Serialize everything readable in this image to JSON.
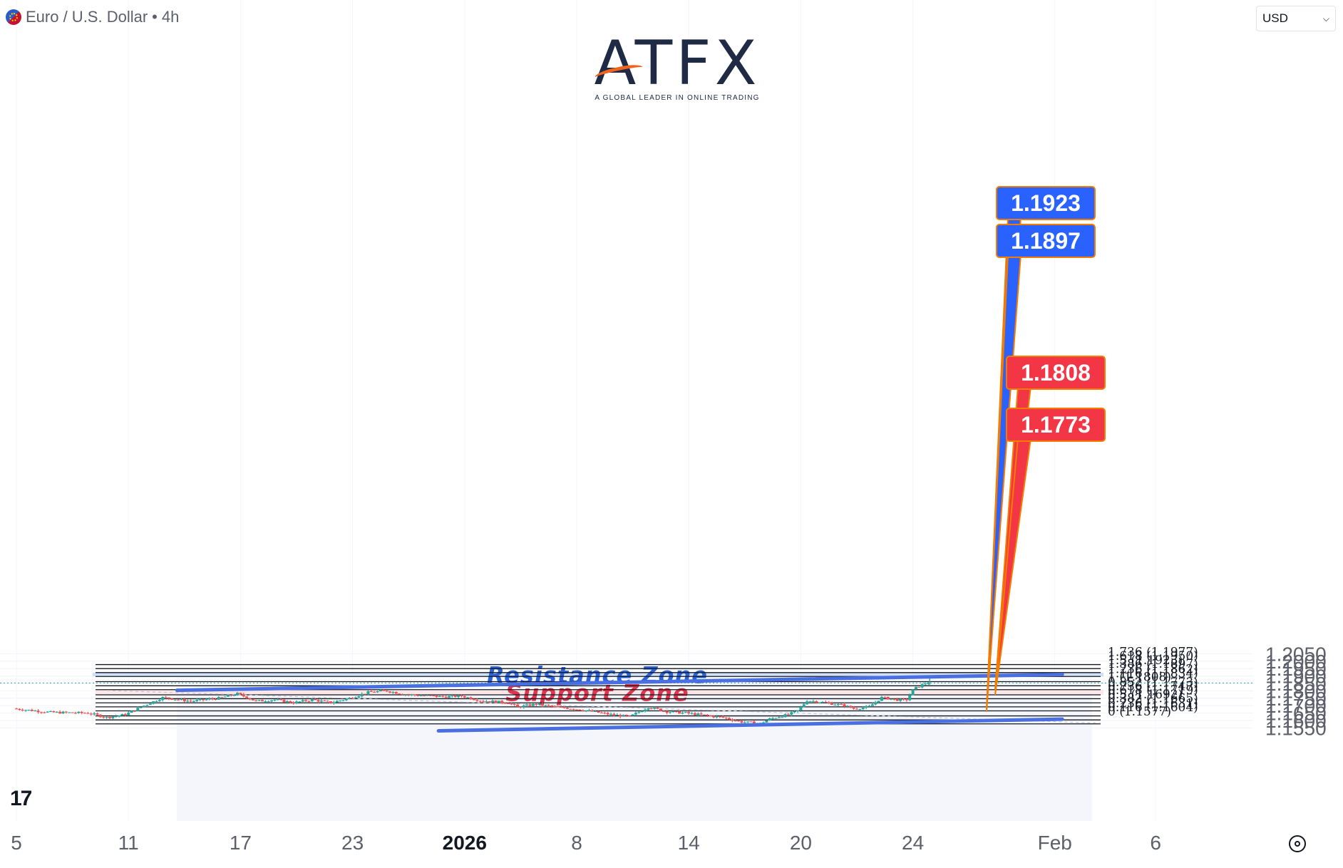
{
  "header": {
    "symbol_title": "Euro / U.S. Dollar",
    "separator": "•",
    "timeframe": "4h"
  },
  "currency_selector": {
    "value": "USD"
  },
  "brand": {
    "name": "ATFX",
    "tagline": "A GLOBAL LEADER IN ONLINE TRADING"
  },
  "icons": {
    "flag": "eur-usd-flag-icon",
    "tradingview": "tradingview-logo-icon",
    "settings": "gear-icon",
    "dropdown": "chevron-down-icon"
  },
  "tradingview_mark": "17",
  "colors": {
    "up": "#26a69a",
    "down": "#ef5350",
    "trendline": "#4a6fe0",
    "resistance_fill": "#c9daf8",
    "support_fill": "#fce4e4",
    "tag_blue": "#2962ff",
    "tag_red": "#f23645",
    "tag_border": "#f57c00",
    "resistance_text": "#2c62d9",
    "support_text": "#e0354b"
  },
  "chart_data": {
    "type": "candlestick",
    "instrument": "Euro / U.S. Dollar",
    "interval": "4h",
    "ylim": [
      1.153,
      1.2075
    ],
    "y_ticks": [
      "1.2050",
      "1.2000",
      "1.1950",
      "1.1900",
      "1.1850",
      "1.1800",
      "1.1750",
      "1.1700",
      "1.1650",
      "1.1600",
      "1.1550"
    ],
    "x_ticks": [
      {
        "label": "5",
        "day": 5
      },
      {
        "label": "11",
        "day": 11
      },
      {
        "label": "17",
        "day": 17
      },
      {
        "label": "23",
        "day": 23
      },
      {
        "label": "2026",
        "day": 29,
        "bold": true
      },
      {
        "label": "8",
        "day": 35
      },
      {
        "label": "14",
        "day": 41
      },
      {
        "label": "20",
        "day": 47
      },
      {
        "label": "24",
        "day": 53
      },
      {
        "label": "Feb",
        "day": 60.6
      },
      {
        "label": "6",
        "day": 66
      }
    ],
    "fibonacci": {
      "levels": [
        {
          "label": "1.736 (1.1977)",
          "price": 1.1977
        },
        {
          "label": "1.618 (1.1950)",
          "price": 1.195
        },
        {
          "label": "1.5 (1.1923)",
          "price": 1.1923
        },
        {
          "label": "1.386 (1.1897)",
          "price": 1.1897
        },
        {
          "label": "1.236 (1.1862)",
          "price": 1.1862
        },
        {
          "label": "1.116 (1.1834)",
          "price": 1.1834
        },
        {
          "label": "1 (1.1808)",
          "price": 1.1808
        },
        {
          "label": "0.852 (1.1773)",
          "price": 1.1773
        },
        {
          "label": "0.736 (1.1747)",
          "price": 1.1747
        },
        {
          "label": "0.618 (1.1719)",
          "price": 1.1719
        },
        {
          "label": "0.5 (1.1692)",
          "price": 1.1692
        },
        {
          "label": "0.382 (1.1665)",
          "price": 1.1665
        },
        {
          "label": "0.236 (1.1631)",
          "price": 1.1631
        },
        {
          "label": "0.116 (1.1604)",
          "price": 1.1604
        },
        {
          "label": "0 (1.1577)",
          "price": 1.1577
        }
      ]
    },
    "zones": [
      {
        "name": "Resistance Zone",
        "from": 1.1897,
        "to": 1.1923
      },
      {
        "name": "Support Zone",
        "from": 1.1773,
        "to": 1.1808
      }
    ],
    "price_tags": [
      {
        "text": "1.1923",
        "price": 1.1923,
        "color": "blue"
      },
      {
        "text": "1.1897",
        "price": 1.1897,
        "color": "blue"
      },
      {
        "text": "1.1808",
        "price": 1.1808,
        "color": "red"
      },
      {
        "text": "1.1773",
        "price": 1.1773,
        "color": "red"
      }
    ],
    "last_price": 1.1853,
    "trendlines": [
      {
        "name": "upper-channel",
        "from": {
          "day": 13.6,
          "price": 1.1804
        },
        "to": {
          "day": 61,
          "price": 1.191
        }
      },
      {
        "name": "lower-channel",
        "from": {
          "day": 27.6,
          "price": 1.153
        },
        "to": {
          "day": 61,
          "price": 1.1609
        }
      }
    ],
    "candle_path": [
      {
        "day": 5,
        "price": 1.168
      },
      {
        "day": 7,
        "price": 1.1655
      },
      {
        "day": 9,
        "price": 1.165
      },
      {
        "day": 10,
        "price": 1.162
      },
      {
        "day": 11,
        "price": 1.164
      },
      {
        "day": 12,
        "price": 1.17
      },
      {
        "day": 13,
        "price": 1.1755
      },
      {
        "day": 14.5,
        "price": 1.173
      },
      {
        "day": 16,
        "price": 1.175
      },
      {
        "day": 17,
        "price": 1.178
      },
      {
        "day": 18,
        "price": 1.173
      },
      {
        "day": 19,
        "price": 1.174
      },
      {
        "day": 20,
        "price": 1.172
      },
      {
        "day": 21,
        "price": 1.174
      },
      {
        "day": 22,
        "price": 1.172
      },
      {
        "day": 23,
        "price": 1.175
      },
      {
        "day": 24,
        "price": 1.179
      },
      {
        "day": 25,
        "price": 1.18
      },
      {
        "day": 26,
        "price": 1.1775
      },
      {
        "day": 28,
        "price": 1.176
      },
      {
        "day": 29,
        "price": 1.1765
      },
      {
        "day": 30,
        "price": 1.1735
      },
      {
        "day": 31.5,
        "price": 1.172
      },
      {
        "day": 32,
        "price": 1.169
      },
      {
        "day": 33,
        "price": 1.171
      },
      {
        "day": 34,
        "price": 1.169
      },
      {
        "day": 35,
        "price": 1.168
      },
      {
        "day": 36,
        "price": 1.166
      },
      {
        "day": 37,
        "price": 1.164
      },
      {
        "day": 38,
        "price": 1.1625
      },
      {
        "day": 39,
        "price": 1.169
      },
      {
        "day": 40,
        "price": 1.166
      },
      {
        "day": 41,
        "price": 1.165
      },
      {
        "day": 42,
        "price": 1.1635
      },
      {
        "day": 43,
        "price": 1.162
      },
      {
        "day": 44,
        "price": 1.159
      },
      {
        "day": 45,
        "price": 1.158
      },
      {
        "day": 45.5,
        "price": 1.161
      },
      {
        "day": 46.5,
        "price": 1.164
      },
      {
        "day": 47,
        "price": 1.1665
      },
      {
        "day": 47.5,
        "price": 1.1735
      },
      {
        "day": 48.5,
        "price": 1.172
      },
      {
        "day": 49.5,
        "price": 1.17
      },
      {
        "day": 50,
        "price": 1.168
      },
      {
        "day": 50.8,
        "price": 1.169
      },
      {
        "day": 51.5,
        "price": 1.1755
      },
      {
        "day": 52.3,
        "price": 1.174
      },
      {
        "day": 52.8,
        "price": 1.1735
      },
      {
        "day": 53.2,
        "price": 1.181
      },
      {
        "day": 53.5,
        "price": 1.183
      },
      {
        "day": 53.9,
        "price": 1.1855
      }
    ]
  }
}
